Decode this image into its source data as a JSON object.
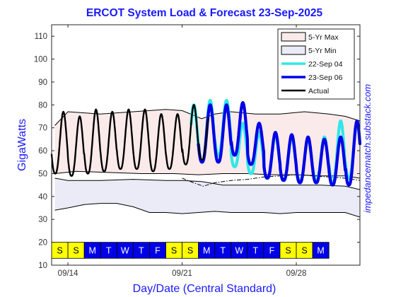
{
  "chart_data": {
    "type": "line",
    "title": "ERCOT System Load & Forecast 23-Sep-2025",
    "xlabel": "Day/Date (Central Standard)",
    "ylabel": "GigaWatts",
    "watermark": "impedancematch.substack.com",
    "xlim": [
      0,
      18.9
    ],
    "ylim": [
      10,
      115
    ],
    "y_ticks": [
      10,
      20,
      30,
      40,
      50,
      60,
      70,
      80,
      90,
      100,
      110
    ],
    "x_tick_labels": [
      {
        "x": 1.0,
        "label": "09/14"
      },
      {
        "x": 8.0,
        "label": "09/21"
      },
      {
        "x": 15.0,
        "label": "09/28"
      }
    ],
    "day_strip": {
      "y_range": [
        13,
        20
      ],
      "weekend_color": "#ffff00",
      "weekday_color": "#0000e6",
      "days": [
        {
          "label": "S",
          "weekend": true
        },
        {
          "label": "S",
          "weekend": true
        },
        {
          "label": "M",
          "weekend": false
        },
        {
          "label": "T",
          "weekend": false
        },
        {
          "label": "W",
          "weekend": false
        },
        {
          "label": "T",
          "weekend": false
        },
        {
          "label": "F",
          "weekend": false
        },
        {
          "label": "S",
          "weekend": true
        },
        {
          "label": "S",
          "weekend": true
        },
        {
          "label": "M",
          "weekend": false
        },
        {
          "label": "T",
          "weekend": false
        },
        {
          "label": "W",
          "weekend": false
        },
        {
          "label": "T",
          "weekend": false
        },
        {
          "label": "F",
          "weekend": false
        },
        {
          "label": "S",
          "weekend": true
        },
        {
          "label": "S",
          "weekend": true
        },
        {
          "label": "M",
          "weekend": false
        }
      ]
    },
    "legend": {
      "placement": "top-right",
      "items": [
        {
          "name": "5-Yr Max",
          "kind": "patch",
          "color": "#fbeaea"
        },
        {
          "name": "5-Yr Min",
          "kind": "patch",
          "color": "#ebebf7"
        },
        {
          "name": "22-Sep 04",
          "kind": "line",
          "color": "#33e6e6"
        },
        {
          "name": "23-Sep 06",
          "kind": "line",
          "color": "#0000e6"
        },
        {
          "name": "Actual",
          "kind": "line",
          "color": "#000000"
        }
      ]
    },
    "bands": {
      "max": {
        "color": "#fbeaea",
        "upper": [
          [
            0.2,
            71
          ],
          [
            1.0,
            77
          ],
          [
            3.0,
            76
          ],
          [
            5.0,
            77
          ],
          [
            7.0,
            78
          ],
          [
            8.0,
            77.5
          ],
          [
            9.2,
            74
          ],
          [
            10.0,
            76
          ],
          [
            11.0,
            77
          ],
          [
            12.5,
            76
          ],
          [
            14.0,
            76
          ],
          [
            15.5,
            77
          ],
          [
            17.0,
            76
          ],
          [
            18.0,
            75
          ],
          [
            18.9,
            73
          ]
        ],
        "lower": [
          [
            0.2,
            50
          ],
          [
            1.5,
            51
          ],
          [
            3.5,
            50.5
          ],
          [
            5.5,
            50
          ],
          [
            7.5,
            50
          ],
          [
            9.0,
            49.5
          ],
          [
            10.5,
            50
          ],
          [
            12.0,
            50
          ],
          [
            13.5,
            49.5
          ],
          [
            15.0,
            49.5
          ],
          [
            16.5,
            49
          ],
          [
            18.0,
            49
          ],
          [
            18.9,
            48
          ]
        ]
      },
      "min": {
        "color": "#ebebf7",
        "upper": [
          [
            0.2,
            48
          ],
          [
            1.0,
            47
          ],
          [
            3.0,
            47
          ],
          [
            5.0,
            47.5
          ],
          [
            7.0,
            47
          ],
          [
            8.0,
            47
          ],
          [
            9.2,
            46.5
          ],
          [
            10.5,
            45
          ],
          [
            12.0,
            45
          ],
          [
            13.5,
            45
          ],
          [
            15.0,
            45
          ],
          [
            16.5,
            45
          ],
          [
            18.0,
            44.5
          ],
          [
            18.9,
            43
          ]
        ],
        "lower": [
          [
            0.2,
            34
          ],
          [
            1.0,
            35
          ],
          [
            2.0,
            36.5
          ],
          [
            3.0,
            37
          ],
          [
            4.0,
            37
          ],
          [
            5.0,
            35.5
          ],
          [
            6.0,
            33
          ],
          [
            7.0,
            33
          ],
          [
            8.0,
            32.5
          ],
          [
            9.0,
            33
          ],
          [
            10.0,
            33.5
          ],
          [
            11.0,
            33
          ],
          [
            12.0,
            33
          ],
          [
            13.0,
            33
          ],
          [
            14.0,
            32.5
          ],
          [
            15.0,
            33
          ],
          [
            16.0,
            33
          ],
          [
            17.0,
            33
          ],
          [
            18.0,
            33
          ],
          [
            18.9,
            31
          ]
        ]
      }
    },
    "dash_line": [
      [
        8.0,
        48
      ],
      [
        8.7,
        46
      ],
      [
        9.3,
        44.5
      ],
      [
        10.0,
        46
      ],
      [
        11.0,
        47
      ],
      [
        12.0,
        47.5
      ],
      [
        13.0,
        48.5
      ],
      [
        14.0,
        49
      ],
      [
        15.0,
        49.5
      ],
      [
        16.0,
        49
      ],
      [
        17.0,
        48.5
      ],
      [
        18.0,
        48
      ],
      [
        18.9,
        47
      ]
    ],
    "series": [
      {
        "name": "Actual",
        "color": "#000000",
        "width": 2.4,
        "start": 0.0,
        "end": 9.6,
        "peak_phase": 0.72,
        "peaks": [
          77,
          75,
          78,
          77,
          78,
          78,
          76,
          76,
          80,
          78
        ],
        "troughs": [
          50,
          49,
          50,
          51,
          52,
          52,
          51,
          52,
          54,
          56
        ]
      },
      {
        "name": "22-Sep 04",
        "color": "#33e6e6",
        "width": 4.2,
        "start": 8.55,
        "end": 18.9,
        "peak_phase": 0.72,
        "peaks": [
          80,
          82,
          82,
          72,
          68,
          67,
          66,
          65,
          66,
          73,
          72
        ],
        "troughs": [
          54,
          55,
          58,
          53,
          50,
          48,
          47,
          47,
          47,
          46,
          48
        ]
      },
      {
        "name": "23-Sep 06",
        "color": "#0000e6",
        "width": 4.2,
        "start": 9.0,
        "end": 18.9,
        "peak_phase": 0.72,
        "peaks": [
          80,
          80,
          81,
          72,
          68,
          67,
          66,
          65,
          66,
          73,
          72
        ],
        "troughs": [
          55,
          55,
          58,
          54,
          48,
          47,
          46,
          46,
          45,
          45,
          48
        ]
      }
    ]
  }
}
